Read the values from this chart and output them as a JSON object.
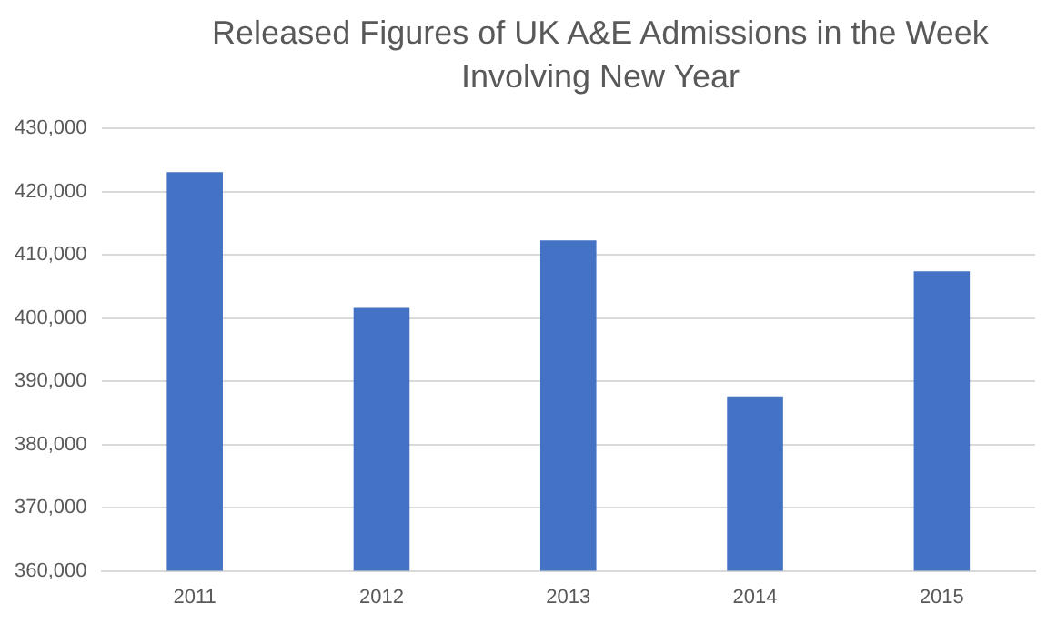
{
  "chart_data": {
    "type": "bar",
    "title": "Released Figures of UK A&E Admissions in the Week Involving New Year",
    "categories": [
      "2011",
      "2012",
      "2013",
      "2014",
      "2015"
    ],
    "values": [
      423100,
      401600,
      412300,
      387600,
      407400
    ],
    "color": "#4472c4",
    "ylim": [
      360000,
      430000
    ],
    "yticks": [
      {
        "value": 360000,
        "label": "360,000"
      },
      {
        "value": 370000,
        "label": "370,000"
      },
      {
        "value": 380000,
        "label": "380,000"
      },
      {
        "value": 390000,
        "label": "390,000"
      },
      {
        "value": 400000,
        "label": "400,000"
      },
      {
        "value": 410000,
        "label": "410,000"
      },
      {
        "value": 420000,
        "label": "420,000"
      },
      {
        "value": 430000,
        "label": "430,000"
      }
    ],
    "grid": "y"
  }
}
